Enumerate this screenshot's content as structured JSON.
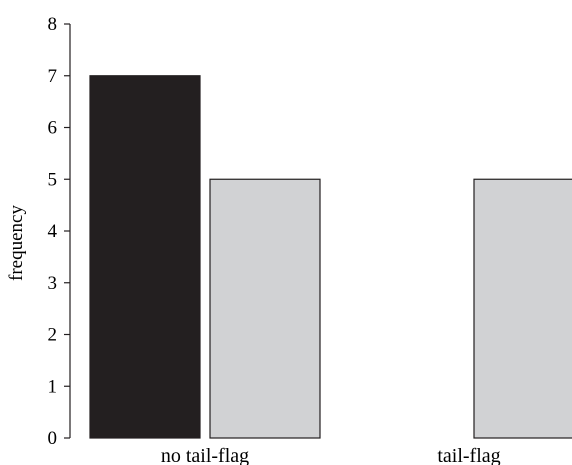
{
  "chart_data": {
    "type": "bar",
    "title": "",
    "xlabel": "",
    "ylabel": "frequency",
    "categories": [
      "no tail-flag",
      "tail-flag"
    ],
    "series": [
      {
        "values": [
          7,
          0
        ],
        "color": "#231f20"
      },
      {
        "values": [
          5,
          5
        ],
        "color": "#d1d2d4"
      }
    ],
    "ylim": [
      0,
      8
    ],
    "yticks": [
      0,
      1,
      2,
      3,
      4,
      5,
      6,
      7,
      8
    ],
    "grid": false,
    "legend": "none"
  }
}
